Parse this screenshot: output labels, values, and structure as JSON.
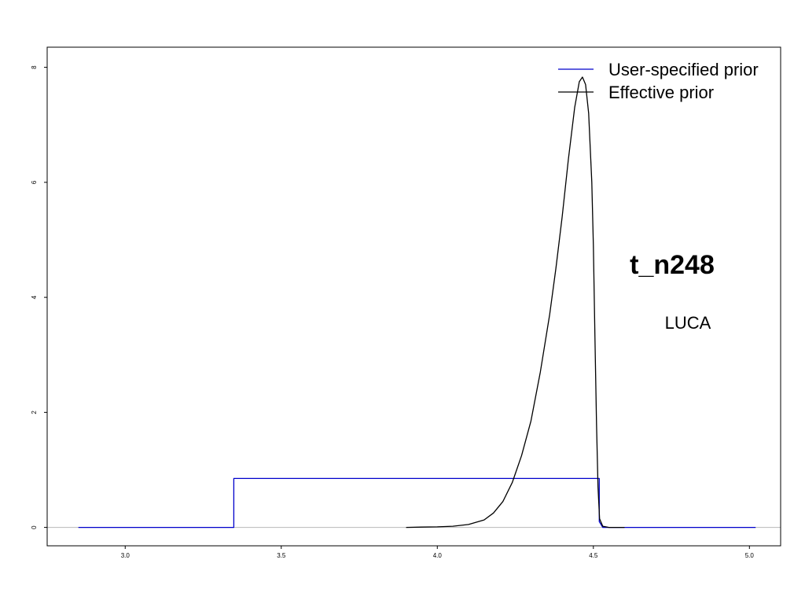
{
  "chart_data": {
    "type": "line",
    "title": "t_n248",
    "subtitle": "LUCA",
    "xlabel": "",
    "ylabel": "",
    "xlim": [
      2.75,
      5.1
    ],
    "ylim": [
      -0.32,
      8.35
    ],
    "x_ticks": [
      3.0,
      3.5,
      4.0,
      4.5,
      5.0
    ],
    "x_tick_labels": [
      "3.0",
      "3.5",
      "4.0",
      "4.5",
      "5.0"
    ],
    "y_ticks": [
      0,
      2,
      4,
      6,
      8
    ],
    "y_tick_labels": [
      "0",
      "2",
      "4",
      "6",
      "8"
    ],
    "grid": false,
    "legend": {
      "position": "top-right"
    },
    "zero_line_color": "#b8b8b8",
    "series": [
      {
        "name": "User-specified prior",
        "color": "#0000cc",
        "x": [
          2.85,
          3.348,
          3.348,
          4.519,
          4.519,
          4.53,
          5.02
        ],
        "y": [
          0,
          0,
          0.85,
          0.85,
          0.1,
          0,
          0
        ]
      },
      {
        "name": "Effective prior",
        "color": "#000000",
        "x": [
          3.9,
          3.95,
          4.0,
          4.05,
          4.1,
          4.15,
          4.18,
          4.21,
          4.24,
          4.27,
          4.3,
          4.33,
          4.36,
          4.38,
          4.4,
          4.42,
          4.44,
          4.455,
          4.465,
          4.475,
          4.485,
          4.495,
          4.5,
          4.505,
          4.51,
          4.515,
          4.52,
          4.53,
          4.55,
          4.6
        ],
        "y": [
          0,
          0.005,
          0.01,
          0.02,
          0.05,
          0.13,
          0.25,
          0.45,
          0.78,
          1.25,
          1.85,
          2.7,
          3.7,
          4.5,
          5.4,
          6.4,
          7.3,
          7.75,
          7.83,
          7.7,
          7.2,
          6.0,
          4.9,
          3.3,
          1.8,
          0.7,
          0.15,
          0.02,
          0,
          0
        ]
      }
    ]
  }
}
